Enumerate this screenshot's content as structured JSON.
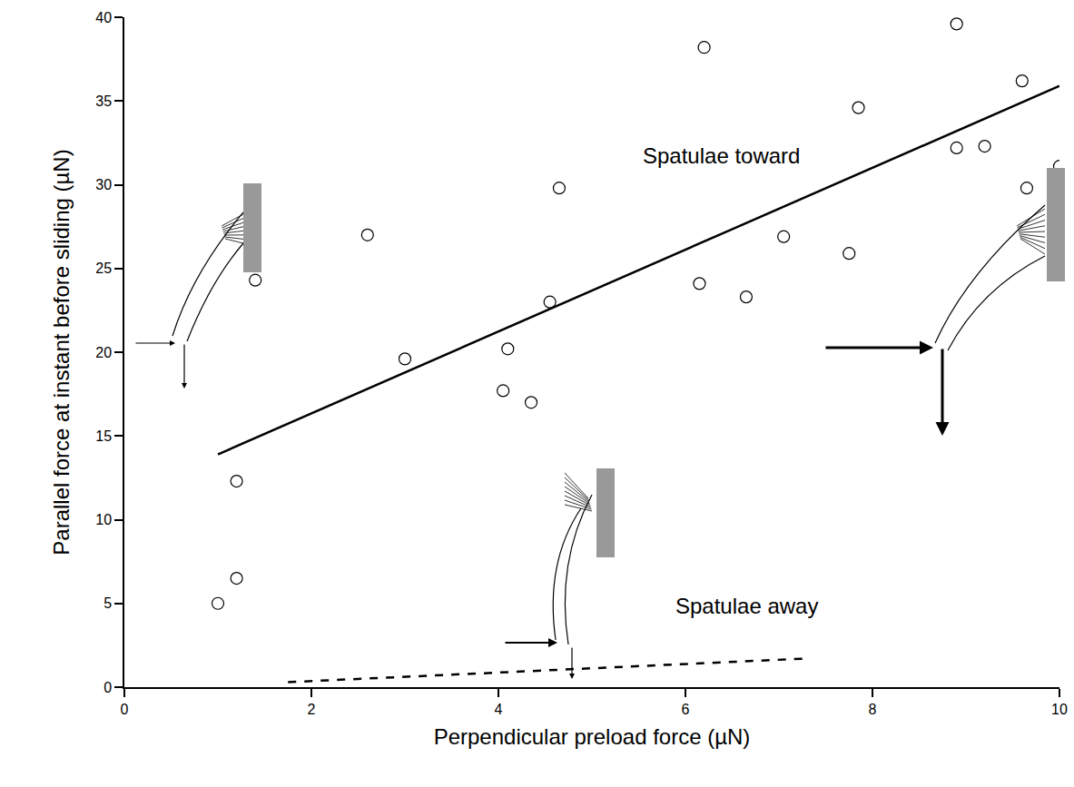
{
  "chart_data": {
    "type": "scatter",
    "x_label": "Perpendicular preload force (µN)",
    "y_label": "Parallel force at instant before sliding (µN)",
    "xlim": [
      0,
      10
    ],
    "xticks": [
      0,
      2,
      4,
      6,
      8,
      10
    ],
    "ylim": [
      0,
      40
    ],
    "yticks": [
      0,
      5,
      10,
      15,
      20,
      25,
      30,
      35,
      40
    ],
    "grid": false,
    "color": "#000000",
    "series": [
      {
        "type": "scatter",
        "marker": "open circle",
        "x": [
          1.0,
          1.2,
          1.2,
          1.4,
          2.6,
          3.0,
          4.05,
          4.1,
          4.35,
          4.55,
          4.65,
          6.15,
          6.2,
          6.65,
          7.05,
          7.75,
          7.85,
          8.9,
          8.9,
          9.2,
          9.6,
          9.65,
          10.0
        ],
        "values": [
          5.0,
          12.3,
          6.5,
          24.3,
          27.0,
          19.6,
          17.7,
          20.2,
          17.0,
          23.0,
          29.8,
          24.1,
          38.2,
          23.3,
          26.9,
          25.9,
          34.6,
          32.2,
          39.6,
          32.3,
          36.2,
          29.8,
          31.1
        ]
      },
      {
        "type": "line",
        "line_style": "solid",
        "x": [
          1.0,
          10.0
        ],
        "values": [
          13.9,
          35.9
        ]
      },
      {
        "type": "line",
        "line_style": "dashed",
        "x": [
          1.75,
          7.25
        ],
        "values": [
          0.3,
          1.7
        ]
      }
    ],
    "annotations": [
      {
        "text": "Spatulae toward"
      },
      {
        "text": "Spatulae away"
      }
    ]
  }
}
